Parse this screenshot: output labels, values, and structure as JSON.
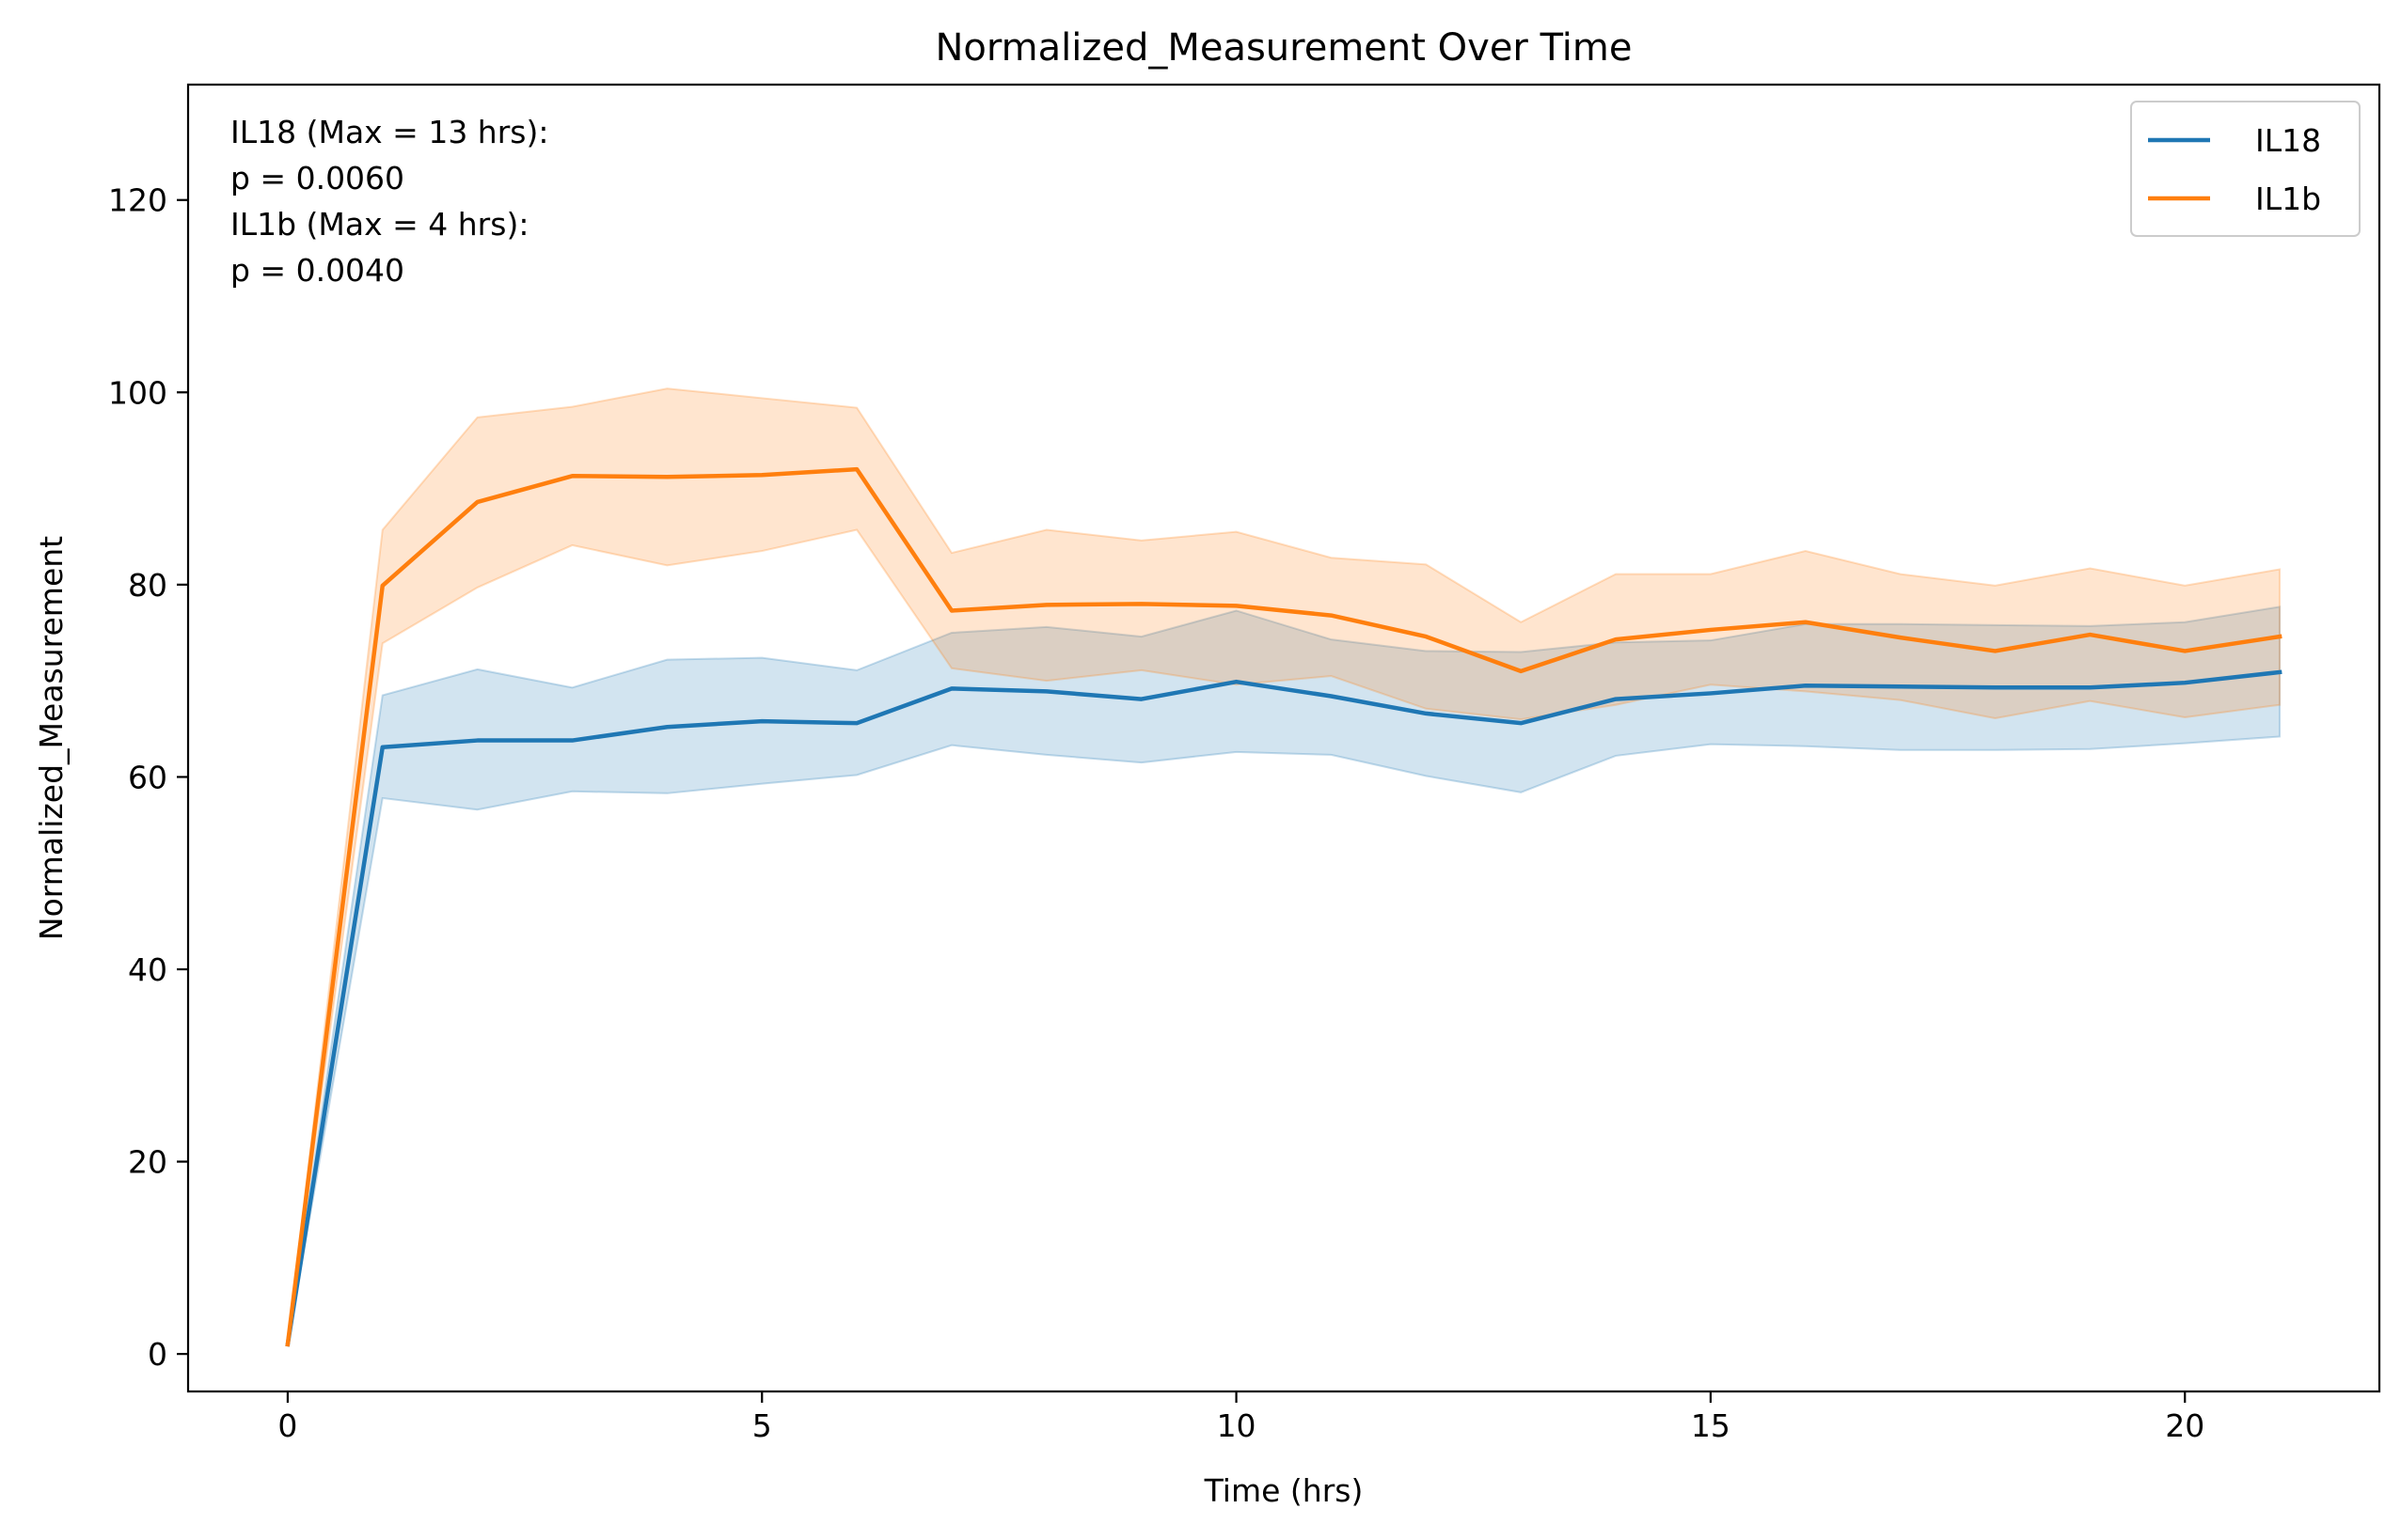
{
  "chart_data": {
    "type": "line",
    "title": "Normalized_Measurement Over Time",
    "xlabel": "Time (hrs)",
    "ylabel": "Normalized_Measurement",
    "xlim": [
      -1.05,
      22.05
    ],
    "ylim": [
      -3.9,
      132
    ],
    "xticks": [
      0,
      5,
      10,
      15,
      20
    ],
    "yticks": [
      0,
      20,
      40,
      60,
      80,
      100,
      120
    ],
    "grid": false,
    "legend_position": "top-right",
    "x": [
      0,
      1,
      2,
      3,
      4,
      5,
      6,
      7,
      8,
      9,
      10,
      11,
      12,
      13,
      14,
      15,
      16,
      17,
      18,
      19,
      20,
      21
    ],
    "series": [
      {
        "name": "IL18",
        "color": "#1f77b4",
        "values": [
          1,
          63.1,
          63.8,
          63.8,
          65.2,
          65.8,
          65.6,
          69.2,
          68.9,
          68.1,
          69.9,
          68.4,
          66.6,
          65.6,
          68.1,
          68.7,
          69.5,
          69.4,
          69.3,
          69.3,
          69.8,
          70.9
        ],
        "ci_lower": [
          1,
          57.8,
          56.6,
          58.5,
          58.3,
          59.3,
          60.2,
          63.3,
          62.3,
          61.5,
          62.6,
          62.3,
          60.1,
          58.4,
          62.2,
          63.4,
          63.2,
          62.8,
          62.8,
          62.9,
          63.5,
          64.2
        ],
        "ci_upper": [
          1,
          68.5,
          71.2,
          69.3,
          72.2,
          72.4,
          71.1,
          75,
          75.6,
          74.6,
          77.3,
          74.3,
          73.1,
          73,
          74,
          74.2,
          75.9,
          75.9,
          75.8,
          75.7,
          76.1,
          77.7
        ]
      },
      {
        "name": "IL1b",
        "color": "#ff7f0e",
        "values": [
          1,
          79.9,
          88.6,
          91.3,
          91.2,
          91.4,
          92,
          77.3,
          77.9,
          78,
          77.8,
          76.8,
          74.6,
          71,
          74.3,
          75.3,
          76.1,
          74.5,
          73.1,
          74.8,
          73.1,
          74.6
        ],
        "ci_lower": [
          1,
          73.9,
          79.7,
          84.1,
          82,
          83.5,
          85.7,
          71.3,
          70,
          71.1,
          69.6,
          70.5,
          67.1,
          66,
          67.5,
          69.6,
          68.9,
          68,
          66.1,
          67.9,
          66.2,
          67.5
        ],
        "ci_upper": [
          1,
          85.7,
          97.4,
          98.5,
          100.4,
          99.4,
          98.4,
          83.3,
          85.7,
          84.6,
          85.5,
          82.8,
          82.1,
          76.1,
          81.1,
          81.1,
          83.5,
          81.1,
          79.9,
          81.7,
          79.9,
          81.6
        ]
      }
    ],
    "annotation": {
      "line1": "IL18 (Max = 13 hrs):",
      "line2": " p = 0.0060",
      "line3": "IL1b (Max = 4 hrs):",
      "line4": " p = 0.0040"
    }
  }
}
